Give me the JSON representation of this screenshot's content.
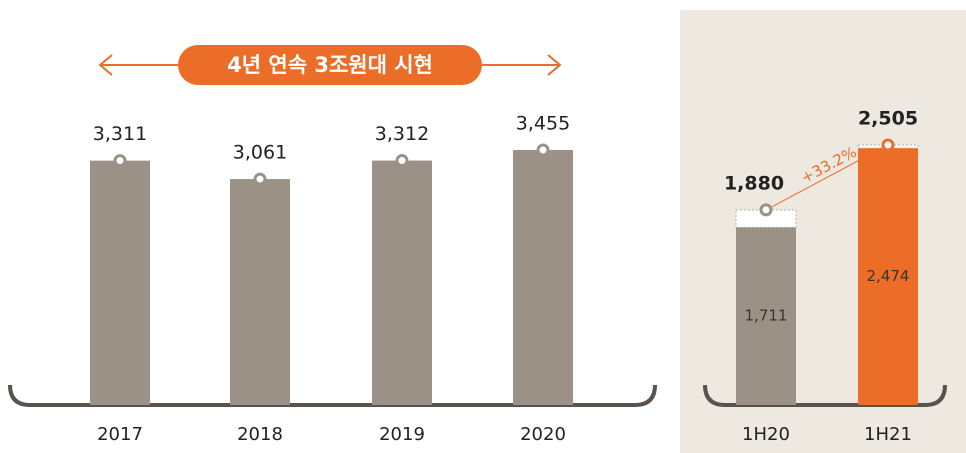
{
  "chart_data": [
    {
      "type": "bar",
      "banner": "4년 연속 3조원대 시현",
      "categories": [
        "2017",
        "2018",
        "2019",
        "2020"
      ],
      "values": [
        3311,
        3061,
        3312,
        3455
      ],
      "value_labels": [
        "3,311",
        "3,061",
        "3,312",
        "3,455"
      ],
      "color": "#9b9186"
    },
    {
      "type": "bar",
      "categories": [
        "1H20",
        "1H21"
      ],
      "values": [
        1880,
        2505
      ],
      "value_labels": [
        "1,880",
        "2,505"
      ],
      "inner_values": [
        1711,
        2474
      ],
      "inner_value_labels": [
        "1,711",
        "2,474"
      ],
      "colors": [
        "#9b9186",
        "#eb6d27"
      ],
      "annotation": "+33.2%",
      "annotation_color": "#eb6d27"
    }
  ]
}
